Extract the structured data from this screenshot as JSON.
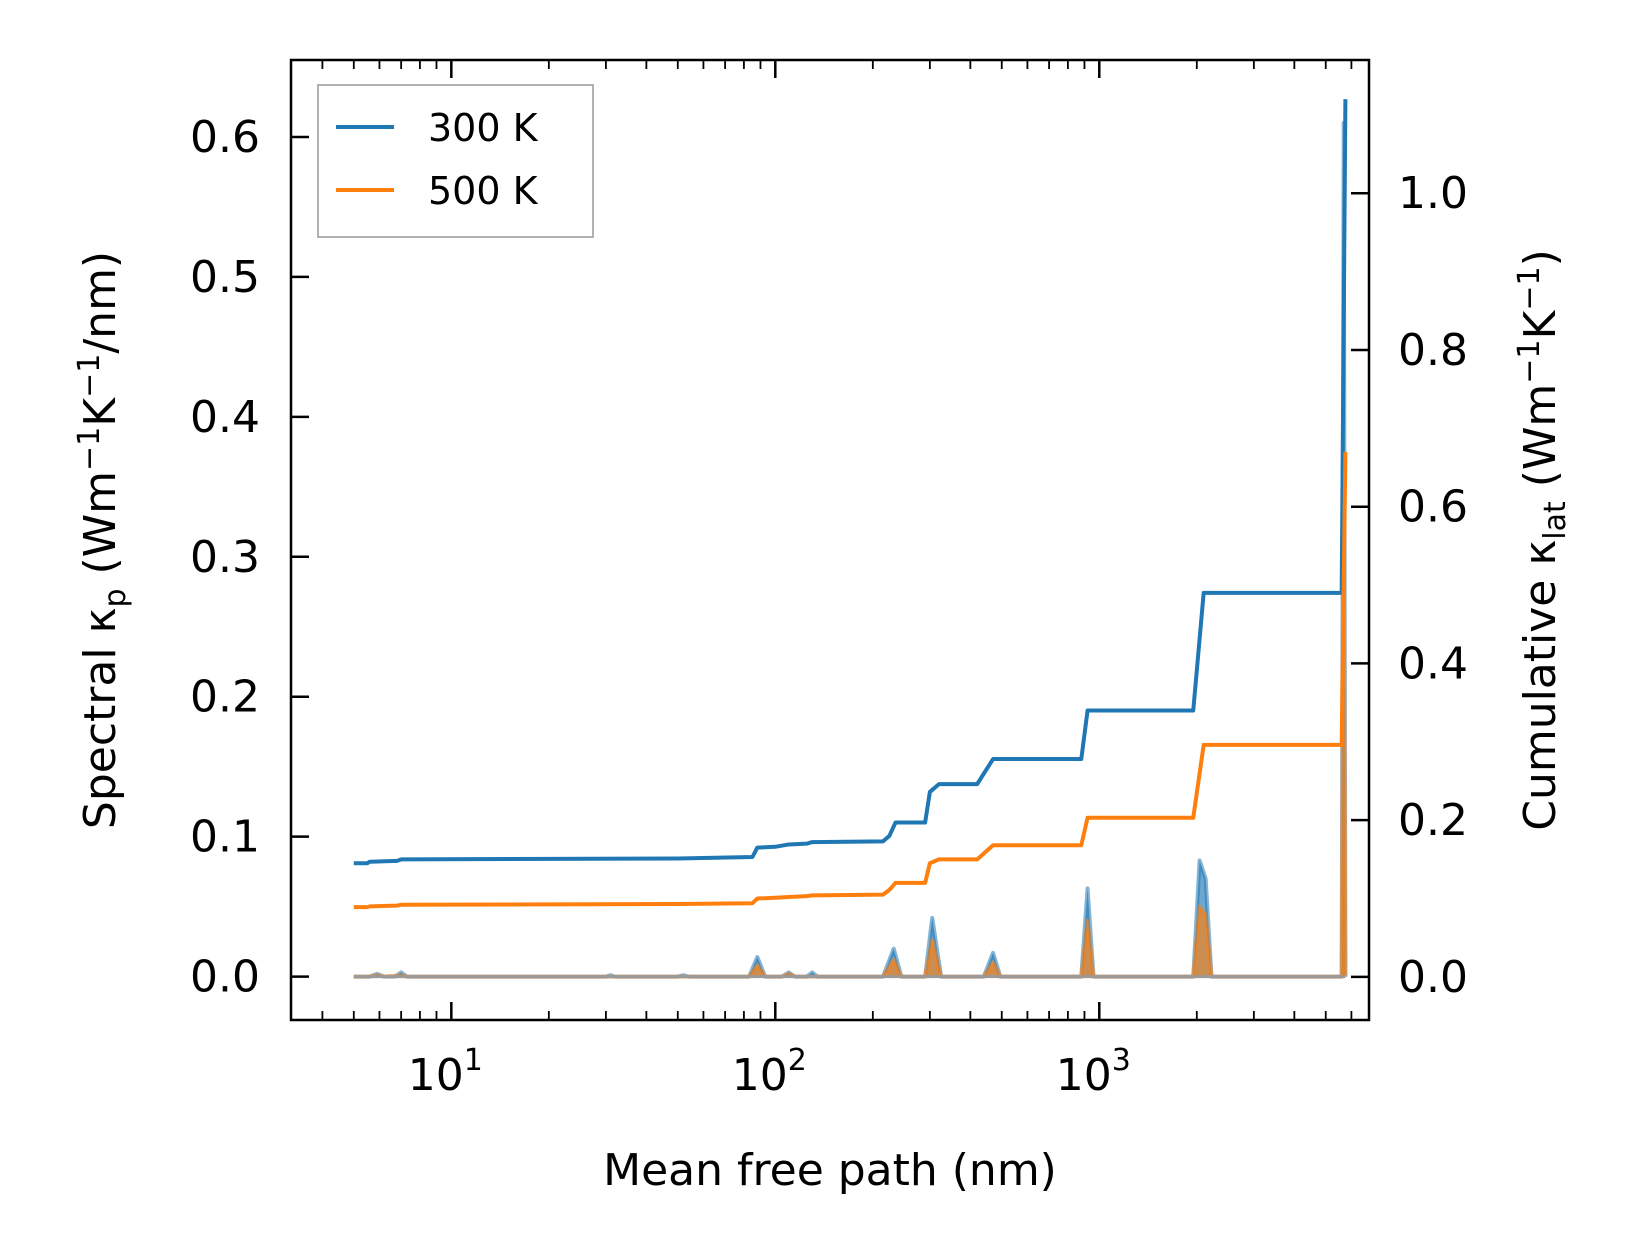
{
  "chart_data": {
    "type": "line",
    "xlabel": "Mean free path (nm)",
    "ylabel_left": "Spectral κ_p (Wm⁻¹K⁻¹/nm)",
    "ylabel_right": "Cumulative κ_lat (Wm⁻¹K⁻¹)",
    "x_scale": "log",
    "xlim": [
      3.2,
      6800
    ],
    "ylim_left": [
      -0.031,
      0.655
    ],
    "ylim_right": [
      -0.055,
      1.17
    ],
    "x_ticks": [
      {
        "value": 10,
        "base": "10",
        "exp": "1"
      },
      {
        "value": 100,
        "base": "10",
        "exp": "2"
      },
      {
        "value": 1000,
        "base": "10",
        "exp": "3"
      }
    ],
    "yticks_left": [
      "0.0",
      "0.1",
      "0.2",
      "0.3",
      "0.4",
      "0.5",
      "0.6"
    ],
    "yticks_right": [
      "0.0",
      "0.2",
      "0.4",
      "0.6",
      "0.8",
      "1.0"
    ],
    "legend": [
      {
        "label": "300 K",
        "color": "#1f77b4"
      },
      {
        "label": "500 K",
        "color": "#ff7f0e"
      }
    ],
    "cumulative_series": [
      {
        "name": "300 K",
        "color": "#1f77b4",
        "points": [
          [
            5,
            0.145
          ],
          [
            5.5,
            0.145
          ],
          [
            5.6,
            0.147
          ],
          [
            6.8,
            0.148
          ],
          [
            7,
            0.15
          ],
          [
            50,
            0.151
          ],
          [
            85,
            0.153
          ],
          [
            88,
            0.165
          ],
          [
            100,
            0.166
          ],
          [
            110,
            0.169
          ],
          [
            125,
            0.17
          ],
          [
            130,
            0.172
          ],
          [
            215,
            0.173
          ],
          [
            225,
            0.18
          ],
          [
            235,
            0.197
          ],
          [
            290,
            0.197
          ],
          [
            300,
            0.236
          ],
          [
            320,
            0.246
          ],
          [
            420,
            0.246
          ],
          [
            470,
            0.278
          ],
          [
            880,
            0.278
          ],
          [
            920,
            0.34
          ],
          [
            1950,
            0.34
          ],
          [
            2100,
            0.49
          ],
          [
            5600,
            0.49
          ],
          [
            5750,
            1.12
          ]
        ]
      },
      {
        "name": "500 K",
        "color": "#ff7f0e",
        "points": [
          [
            5,
            0.089
          ],
          [
            5.5,
            0.089
          ],
          [
            5.6,
            0.09
          ],
          [
            6.8,
            0.091
          ],
          [
            7,
            0.092
          ],
          [
            50,
            0.093
          ],
          [
            85,
            0.094
          ],
          [
            88,
            0.1
          ],
          [
            100,
            0.101
          ],
          [
            110,
            0.102
          ],
          [
            125,
            0.103
          ],
          [
            130,
            0.104
          ],
          [
            215,
            0.105
          ],
          [
            225,
            0.111
          ],
          [
            235,
            0.12
          ],
          [
            290,
            0.12
          ],
          [
            300,
            0.145
          ],
          [
            320,
            0.15
          ],
          [
            420,
            0.15
          ],
          [
            470,
            0.168
          ],
          [
            880,
            0.168
          ],
          [
            920,
            0.203
          ],
          [
            1950,
            0.203
          ],
          [
            2100,
            0.296
          ],
          [
            5600,
            0.296
          ],
          [
            5750,
            0.67
          ]
        ]
      }
    ],
    "spectral_series": [
      {
        "name": "300 K",
        "color": "#1f77b4",
        "points": [
          [
            5,
            0
          ],
          [
            5.6,
            0
          ],
          [
            5.9,
            0.002
          ],
          [
            6.2,
            0
          ],
          [
            6.7,
            0
          ],
          [
            7,
            0.003
          ],
          [
            7.3,
            0
          ],
          [
            30,
            0
          ],
          [
            31,
            0.001
          ],
          [
            32,
            0
          ],
          [
            50,
            0
          ],
          [
            52,
            0.001
          ],
          [
            54,
            0
          ],
          [
            83,
            0
          ],
          [
            88,
            0.014
          ],
          [
            93,
            0
          ],
          [
            105,
            0
          ],
          [
            110,
            0.003
          ],
          [
            115,
            0
          ],
          [
            125,
            0
          ],
          [
            130,
            0.003
          ],
          [
            135,
            0
          ],
          [
            215,
            0
          ],
          [
            232,
            0.02
          ],
          [
            245,
            0
          ],
          [
            290,
            0
          ],
          [
            305,
            0.042
          ],
          [
            325,
            0
          ],
          [
            440,
            0
          ],
          [
            470,
            0.017
          ],
          [
            495,
            0
          ],
          [
            880,
            0
          ],
          [
            920,
            0.063
          ],
          [
            960,
            0
          ],
          [
            1950,
            0
          ],
          [
            2040,
            0.083
          ],
          [
            2130,
            0.07
          ],
          [
            2220,
            0
          ],
          [
            5600,
            0
          ],
          [
            5680,
            0.61
          ],
          [
            5750,
            0
          ]
        ]
      },
      {
        "name": "500 K",
        "color": "#ff7f0e",
        "points": [
          [
            5,
            0
          ],
          [
            5.6,
            0
          ],
          [
            5.9,
            0.001
          ],
          [
            6.2,
            0
          ],
          [
            7,
            0.001
          ],
          [
            7.3,
            0
          ],
          [
            83,
            0
          ],
          [
            88,
            0.008
          ],
          [
            93,
            0
          ],
          [
            105,
            0
          ],
          [
            110,
            0.002
          ],
          [
            115,
            0
          ],
          [
            215,
            0
          ],
          [
            232,
            0.012
          ],
          [
            245,
            0
          ],
          [
            290,
            0
          ],
          [
            305,
            0.026
          ],
          [
            325,
            0
          ],
          [
            440,
            0
          ],
          [
            470,
            0.01
          ],
          [
            495,
            0
          ],
          [
            880,
            0
          ],
          [
            920,
            0.04
          ],
          [
            960,
            0
          ],
          [
            1950,
            0
          ],
          [
            2040,
            0.05
          ],
          [
            2130,
            0.044
          ],
          [
            2220,
            0
          ],
          [
            5600,
            0
          ],
          [
            5680,
            0.33
          ],
          [
            5750,
            0
          ]
        ]
      }
    ]
  }
}
